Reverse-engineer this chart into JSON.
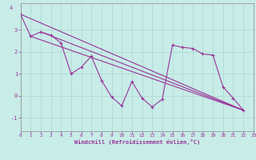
{
  "xlabel": "Windchill (Refroidissement éolien,°C)",
  "background_color": "#c8ece8",
  "grid_color": "#aad8cc",
  "line_color": "#993399",
  "xlim": [
    0,
    23
  ],
  "ylim": [
    -1.6,
    4.2
  ],
  "xticks": [
    0,
    1,
    2,
    3,
    4,
    5,
    6,
    7,
    8,
    9,
    10,
    11,
    12,
    13,
    14,
    15,
    16,
    17,
    18,
    19,
    20,
    21,
    22,
    23
  ],
  "yticks": [
    -1,
    0,
    1,
    2,
    3
  ],
  "series1_x": [
    0,
    1,
    2,
    3,
    4,
    5,
    6,
    7,
    8,
    9,
    10,
    11,
    12,
    13,
    14,
    15,
    16,
    17,
    18,
    19,
    20,
    21,
    22
  ],
  "series1_y": [
    3.7,
    2.7,
    2.9,
    2.75,
    2.4,
    1.0,
    1.3,
    1.8,
    0.7,
    -0.05,
    -0.45,
    0.65,
    -0.1,
    -0.5,
    -0.15,
    2.3,
    2.2,
    2.15,
    1.9,
    1.85,
    0.4,
    -0.1,
    -0.65
  ],
  "line2_x": [
    0,
    22
  ],
  "line2_y": [
    3.7,
    -0.65
  ],
  "line3_x": [
    1,
    22
  ],
  "line3_y": [
    2.7,
    -0.65
  ],
  "line4_x": [
    2,
    22
  ],
  "line4_y": [
    2.9,
    -0.65
  ],
  "marker_style": "+",
  "marker_size": 3,
  "linewidth": 0.8
}
